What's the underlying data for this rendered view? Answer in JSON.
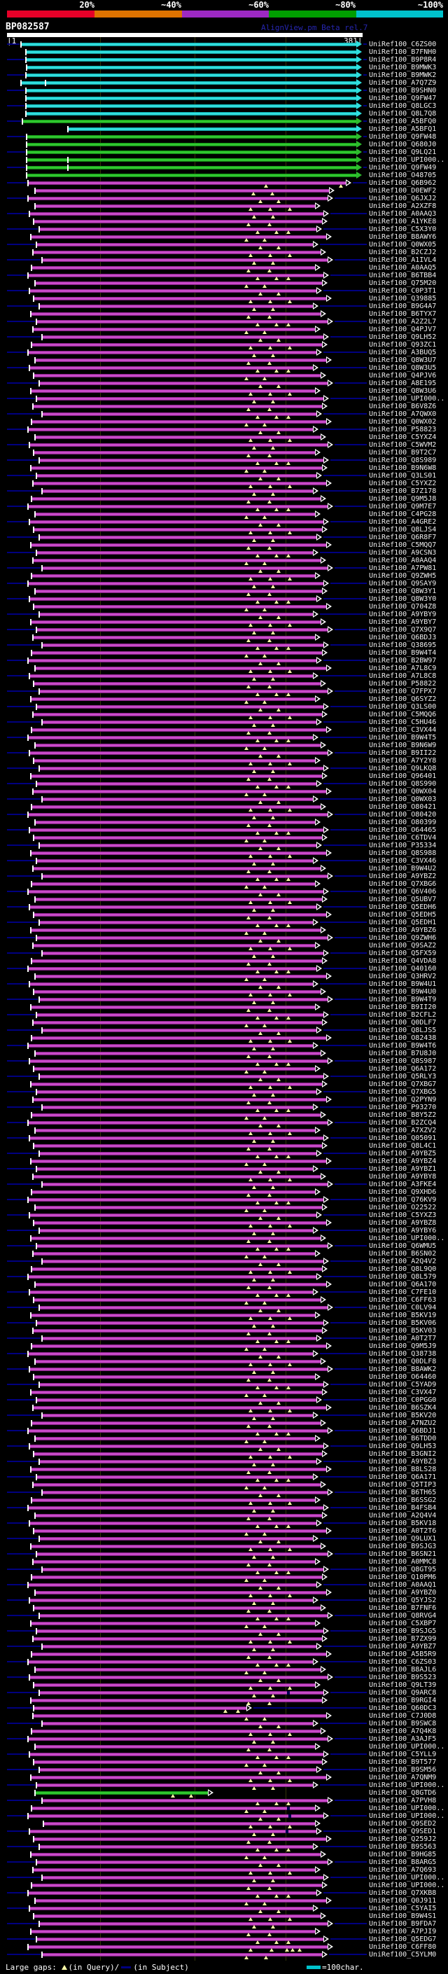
{
  "app": {
    "title": "BP082587",
    "credit": "AlignView.pm Beta rel.7"
  },
  "scale": {
    "labels": [
      "20%",
      "~40%",
      "~60%",
      "~80%",
      "~100%"
    ],
    "colors": [
      "#e60028",
      "#de7300",
      "#9d29c3",
      "#009e00",
      "#00c2cc"
    ]
  },
  "ruler": {
    "start_label": "|1",
    "end_label": "381|"
  },
  "legend": {
    "left_prefix": "Large gaps:",
    "query_marker": "triangle-up-yellow",
    "query_label": "(in Query)/",
    "subject_marker": "navy-dash",
    "subject_label": "(in Subject)",
    "unit_label": "=100char."
  },
  "colors": {
    "background": "#000000",
    "cyan_bar": "#00c8c8",
    "green_bar": "#00a000",
    "magenta_bar": "#b028b0",
    "leader_navy": "#000080",
    "gap_yellow": "#ffffa8",
    "gridline": "#343408",
    "text": "#ffffff"
  },
  "id_prefix": "UniRef100_",
  "row_defaults": {
    "starts": [
      45,
      40,
      50,
      42,
      48,
      56,
      44,
      52,
      47,
      60
    ],
    "ends": [
      460,
      452,
      466,
      447,
      458,
      468,
      450,
      462
    ],
    "gap_sets": [
      [
        355,
        385
      ],
      [
        368,
        395,
        412
      ],
      [
        352,
        378
      ],
      [
        372,
        398
      ],
      [
        358,
        386,
        414
      ],
      [
        363,
        390
      ]
    ]
  },
  "rows": [
    [
      "C6ZS00",
      0,
      {
        "s": 30,
        "e": 509
      }
    ],
    [
      "B7FNH0",
      0,
      {
        "s": 37,
        "e": 509
      }
    ],
    [
      "B9P8R4",
      0,
      {
        "s": 37,
        "e": 509
      }
    ],
    [
      "B9MWK3",
      0,
      {
        "s": 38,
        "e": 509
      }
    ],
    [
      "B9MWK2",
      0,
      {
        "s": 37,
        "e": 509
      }
    ],
    [
      "A7Q7Z9",
      0,
      {
        "s": 30,
        "e": 509,
        "t": [
          65
        ]
      }
    ],
    [
      "B9SHN0",
      0,
      {
        "s": 37,
        "e": 509
      }
    ],
    [
      "Q9FW47",
      0,
      {
        "s": 37,
        "e": 509
      }
    ],
    [
      "Q8LGC3",
      0,
      {
        "s": 37,
        "e": 509
      }
    ],
    [
      "Q8L7Q8",
      0,
      {
        "s": 37,
        "e": 509
      }
    ],
    [
      "A5BFQ0",
      1,
      {
        "s": 32,
        "e": 509
      }
    ],
    [
      "A5BFQ1",
      0,
      {
        "s": 97,
        "e": 509
      }
    ],
    [
      "Q9FW48",
      1,
      {
        "s": 38,
        "e": 509
      }
    ],
    [
      "Q680J0",
      1,
      {
        "s": 38,
        "e": 509
      }
    ],
    [
      "Q9LQ21",
      1,
      {
        "s": 38,
        "e": 509
      }
    ],
    [
      "UPI000..",
      1,
      {
        "s": 38,
        "e": 509,
        "t": [
          97
        ]
      }
    ],
    [
      "Q9FW49",
      1,
      {
        "s": 38,
        "e": 509,
        "t": [
          97
        ]
      }
    ],
    [
      "O48705",
      1,
      {
        "s": 38,
        "e": 509
      }
    ],
    [
      "Q6B962",
      2,
      {
        "s": 40,
        "e": 494,
        "g": [
          380,
          487
        ]
      }
    ],
    [
      "D0EWF2",
      2,
      {
        "s": 50,
        "e": 470,
        "g": [
          362,
          389
        ]
      }
    ],
    [
      "Q6JXJ2",
      2
    ],
    [
      "A2XZF8",
      2
    ],
    [
      "A0AAQ3",
      2
    ],
    [
      "A1YKE8",
      2
    ],
    [
      "C5X3Y0",
      2
    ],
    [
      "B8AWY6",
      2
    ],
    [
      "Q0WX05",
      2
    ],
    [
      "B2CZJ2",
      2
    ],
    [
      "A1IVL4",
      2
    ],
    [
      "A0AAQ5",
      2
    ],
    [
      "B6TBB4",
      2
    ],
    [
      "Q75M20",
      2
    ],
    [
      "C0P3T1",
      2
    ],
    [
      "Q39885",
      2
    ],
    [
      "B9G4A7",
      2
    ],
    [
      "B6TYX7",
      2
    ],
    [
      "A2Z2L7",
      2
    ],
    [
      "Q4PJV7",
      2
    ],
    [
      "Q9LH52",
      2
    ],
    [
      "Q93ZC1",
      2
    ],
    [
      "A3BUQ5",
      2
    ],
    [
      "Q8W3U7",
      2
    ],
    [
      "Q8W3U5",
      2
    ],
    [
      "Q4PJV6",
      2
    ],
    [
      "A8E195",
      2
    ],
    [
      "Q8W3U6",
      2
    ],
    [
      "UPI000..",
      2
    ],
    [
      "B6V8Z6",
      2
    ],
    [
      "A7QWX0",
      2
    ],
    [
      "Q0WX02",
      2
    ],
    [
      "P58823",
      2
    ],
    [
      "C5YXZ4",
      2
    ],
    [
      "C5WVM2",
      2
    ],
    [
      "B9T2C7",
      2
    ],
    [
      "Q8S989",
      2
    ],
    [
      "B9N6W8",
      2
    ],
    [
      "Q3LS01",
      2
    ],
    [
      "C5YXZ2",
      2
    ],
    [
      "B7Z178",
      2
    ],
    [
      "Q9M5J8",
      2
    ],
    [
      "Q9M7E7",
      2
    ],
    [
      "C4PG28",
      2
    ],
    [
      "A4GRE2",
      2
    ],
    [
      "Q8LJS4",
      2
    ],
    [
      "Q6R8F7",
      2
    ],
    [
      "C5MQQ7",
      2
    ],
    [
      "A9CSN3",
      2
    ],
    [
      "A0AAQ4",
      2
    ],
    [
      "A7PW81",
      2
    ],
    [
      "Q9ZWH5",
      2
    ],
    [
      "Q9SAY9",
      2
    ],
    [
      "Q8W3Y1",
      2
    ],
    [
      "Q8W3Y0",
      2
    ],
    [
      "Q704Z8",
      2
    ],
    [
      "A9YBY9",
      2
    ],
    [
      "A9YBY7",
      2
    ],
    [
      "Q7X9Q7",
      2
    ],
    [
      "Q6BDJ3",
      2
    ],
    [
      "Q38695",
      2
    ],
    [
      "B9W4T4",
      2
    ],
    [
      "B2BW97",
      2
    ],
    [
      "A7L8C9",
      2
    ],
    [
      "A7L8C8",
      2
    ],
    [
      "P58822",
      2
    ],
    [
      "Q7FPX7",
      2
    ],
    [
      "Q6SYZ2",
      2
    ],
    [
      "Q3LS00",
      2
    ],
    [
      "C5MQQ6",
      2
    ],
    [
      "C5HU46",
      2
    ],
    [
      "C3VX44",
      2
    ],
    [
      "B9W4T5",
      2
    ],
    [
      "B9N6W9",
      2
    ],
    [
      "B9II22",
      2
    ],
    [
      "A7Y2Y8",
      2
    ],
    [
      "Q9LKQ8",
      2
    ],
    [
      "Q96401",
      2
    ],
    [
      "Q8S990",
      2
    ],
    [
      "Q0WX04",
      2
    ],
    [
      "Q0WX03",
      2
    ],
    [
      "O80421",
      2
    ],
    [
      "O80420",
      2
    ],
    [
      "O80399",
      2
    ],
    [
      "O64465",
      2
    ],
    [
      "C6TDV4",
      2
    ],
    [
      "P35334",
      2
    ],
    [
      "Q8S988",
      2
    ],
    [
      "C3VX46",
      2
    ],
    [
      "B9W4U2",
      2
    ],
    [
      "A9YBZ2",
      2
    ],
    [
      "Q7XBG6",
      2
    ],
    [
      "Q6V406",
      2
    ],
    [
      "Q5UBV7",
      2
    ],
    [
      "Q5EDH6",
      2
    ],
    [
      "Q5EDH5",
      2
    ],
    [
      "Q5EDH1",
      2
    ],
    [
      "A9YBZ6",
      2
    ],
    [
      "Q9ZWH6",
      2
    ],
    [
      "Q9SAZ2",
      2
    ],
    [
      "Q5FX59",
      2
    ],
    [
      "Q4VDA8",
      2
    ],
    [
      "Q40160",
      2
    ],
    [
      "Q3HRV2",
      2
    ],
    [
      "B9W4U1",
      2
    ],
    [
      "B9W4U0",
      2
    ],
    [
      "B9W4T9",
      2
    ],
    [
      "B9II20",
      2
    ],
    [
      "B2CFL2",
      2
    ],
    [
      "Q0DLF7",
      2
    ],
    [
      "Q8LJS5",
      2
    ],
    [
      "O82438",
      2
    ],
    [
      "B9W4T6",
      2
    ],
    [
      "B7U8J0",
      2
    ],
    [
      "Q8S987",
      2
    ],
    [
      "Q6A172",
      2
    ],
    [
      "Q5RLY3",
      2
    ],
    [
      "Q7XBG7",
      2
    ],
    [
      "Q7XBG5",
      2
    ],
    [
      "Q2PYN9",
      2
    ],
    [
      "P93270",
      2
    ],
    [
      "B8Y5Z2",
      2
    ],
    [
      "B2ZCQ4",
      2
    ],
    [
      "A7XZV2",
      2
    ],
    [
      "Q05091",
      2
    ],
    [
      "Q8L4C1",
      2
    ],
    [
      "A9YBZ5",
      2
    ],
    [
      "A9YBZ4",
      2
    ],
    [
      "A9YBZ1",
      2
    ],
    [
      "A9YBY8",
      2
    ],
    [
      "A3FKE4",
      2
    ],
    [
      "Q9XHD6",
      2
    ],
    [
      "Q76KV9",
      2
    ],
    [
      "O22522",
      2
    ],
    [
      "C5YXZ3",
      2
    ],
    [
      "A9YBZ8",
      2
    ],
    [
      "A9YBY6",
      2
    ],
    [
      "UPI000..",
      2
    ],
    [
      "Q6WMU5",
      2
    ],
    [
      "B6SN02",
      2
    ],
    [
      "A2Q4V2",
      2
    ],
    [
      "Q8L9Q0",
      2
    ],
    [
      "Q8L579",
      2
    ],
    [
      "Q6A170",
      2
    ],
    [
      "C7FE10",
      2
    ],
    [
      "C6FF63",
      2
    ],
    [
      "C0LV94",
      2
    ],
    [
      "B5KV19",
      2
    ],
    [
      "B5KV06",
      2
    ],
    [
      "B5KV03",
      2
    ],
    [
      "A0T2T7",
      2
    ],
    [
      "Q9M5J9",
      2
    ],
    [
      "Q38738",
      2
    ],
    [
      "Q0DLF8",
      2
    ],
    [
      "B8AWK2",
      2
    ],
    [
      "O64460",
      2
    ],
    [
      "C5YAD9",
      2
    ],
    [
      "C3VX47",
      2
    ],
    [
      "C0PGG0",
      2
    ],
    [
      "B6SZK4",
      2
    ],
    [
      "B5KV20",
      2
    ],
    [
      "A7NZU2",
      2
    ],
    [
      "Q6BDJ1",
      2
    ],
    [
      "B6TDD0",
      2
    ],
    [
      "Q9LH53",
      2
    ],
    [
      "B3GNI2",
      2
    ],
    [
      "A9YBZ3",
      2
    ],
    [
      "B8LS28",
      2
    ],
    [
      "Q6A171",
      2
    ],
    [
      "Q5TIP3",
      2
    ],
    [
      "B6TH65",
      2
    ],
    [
      "B6SSG2",
      2
    ],
    [
      "B4FSB4",
      2
    ],
    [
      "A2Q4V4",
      2
    ],
    [
      "B5KV18",
      2
    ],
    [
      "A0T2T6",
      2
    ],
    [
      "Q9LUX1",
      2
    ],
    [
      "B9SJG3",
      2
    ],
    [
      "B6SN21",
      2
    ],
    [
      "A0MMC8",
      2
    ],
    [
      "Q8GT95",
      2
    ],
    [
      "Q10PM6",
      2
    ],
    [
      "A0AAQ1",
      2
    ],
    [
      "A9YBZ0",
      2
    ],
    [
      "Q5YJS2",
      2
    ],
    [
      "B7FNF6",
      2
    ],
    [
      "Q8RVG4",
      2
    ],
    [
      "C5XBP7",
      2
    ],
    [
      "B9SJG5",
      2
    ],
    [
      "B7ZX99",
      2
    ],
    [
      "A9YBZ7",
      2
    ],
    [
      "A5B5R9",
      2
    ],
    [
      "C6ZS03",
      2
    ],
    [
      "B8AJL6",
      2
    ],
    [
      "B9S523",
      2
    ],
    [
      "Q9LT39",
      2
    ],
    [
      "Q9ARC8",
      2,
      {
        "n": [
          410
        ]
      }
    ],
    [
      "B9RGI4",
      2
    ],
    [
      "Q60DC3",
      2,
      {
        "s": 48,
        "e": 352,
        "g": [
          322,
          340
        ]
      }
    ],
    [
      "C7J0D8",
      2
    ],
    [
      "B9SWC8",
      2
    ],
    [
      "A7Q4K8",
      2
    ],
    [
      "A3AJF5",
      2
    ],
    [
      "UPI000..",
      2
    ],
    [
      "C5YLL9",
      2
    ],
    [
      "B9T577",
      2
    ],
    [
      "B9SM56",
      2
    ],
    [
      "A7QNM9",
      2
    ],
    [
      "UPI000..",
      2
    ],
    [
      "Q8GTD6",
      1,
      {
        "s": 50,
        "e": 297,
        "g": [
          247,
          273
        ]
      }
    ],
    [
      "A7PVH8",
      2
    ],
    [
      "UPI000..",
      2,
      {
        "n": [
          410
        ]
      }
    ],
    [
      "UPI000..",
      2,
      {
        "n": [
          412
        ]
      }
    ],
    [
      "Q9SED2",
      2,
      {
        "s": 62,
        "e": 450
      }
    ],
    [
      "Q9SED1",
      2,
      {
        "n": [
          408
        ]
      }
    ],
    [
      "Q259J2",
      2
    ],
    [
      "B9S563",
      2
    ],
    [
      "B9HG85",
      2
    ],
    [
      "B8ARG5",
      2
    ],
    [
      "A7Q693",
      2
    ],
    [
      "UPI000..",
      2
    ],
    [
      "UPI000..",
      2
    ],
    [
      "Q7XKB8",
      2
    ],
    [
      "Q0J911",
      2
    ],
    [
      "C5YAI5",
      2
    ],
    [
      "B9W4S1",
      2
    ],
    [
      "B9FDA7",
      2
    ],
    [
      "A7PJI9",
      2
    ],
    [
      "Q5EDG7",
      2
    ],
    [
      "C6FF80",
      2,
      {
        "s": 40,
        "e": 468,
        "g": [
          358,
          388,
          410,
          418,
          428
        ]
      }
    ],
    [
      "C5YLM0",
      2,
      {
        "s": 60,
        "e": 460,
        "g": [
          352,
          380
        ]
      }
    ]
  ],
  "chart_data": {
    "type": "bar",
    "subtype": "blast-hit-alignment-map",
    "title": "BP082587",
    "query_range": [
      1,
      381
    ],
    "x_ticks": [
      1,
      100,
      200,
      300,
      381
    ],
    "identity_scale": {
      "labels": [
        "20%",
        "~40%",
        "~60%",
        "~80%",
        "~100%"
      ],
      "colors": [
        "#e60028",
        "#de7300",
        "#9d29c3",
        "#009e00",
        "#00c2cc"
      ]
    },
    "legend": "Large gaps: triangle(in Query)/dash(in Subject); cyan-dash =100char.",
    "series_note": "249 subject hits listed top to bottom; color = percent identity class (0=~100% cyan, 1=~80% green, 2=~60% magenta); values in rows[] as [id, colorClass, overrides{s,e px extents, g gap marks, t extra ticks, n subject-gap notches}]"
  }
}
